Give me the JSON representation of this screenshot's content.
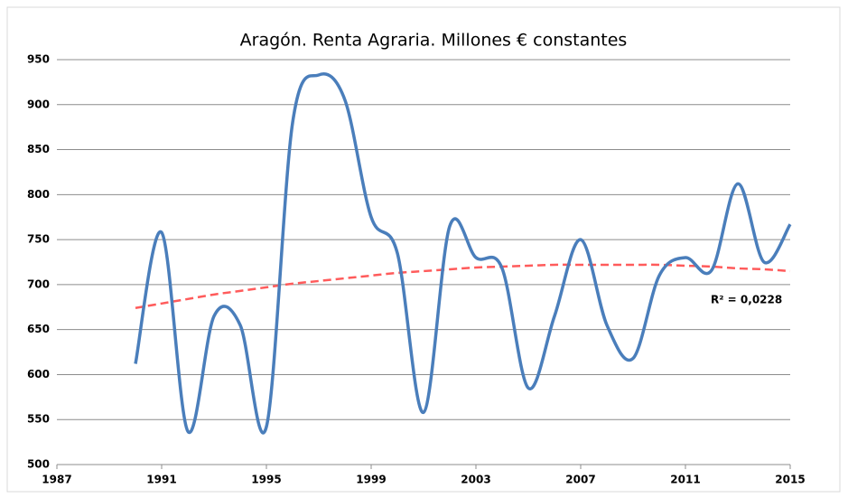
{
  "chart_data": {
    "type": "line",
    "title": "Aragón. Renta Agraria. Millones € constantes",
    "x": [
      1990,
      1991,
      1992,
      1993,
      1994,
      1995,
      1996,
      1997,
      1998,
      1999,
      2000,
      2001,
      2002,
      2003,
      2004,
      2005,
      2006,
      2007,
      2008,
      2009,
      2010,
      2011,
      2012,
      2013,
      2014,
      2015
    ],
    "series": [
      {
        "color": "#4a7ebb",
        "values": [
          612,
          758,
          537,
          665,
          655,
          542,
          880,
          933,
          905,
          775,
          735,
          558,
          765,
          730,
          718,
          585,
          665,
          750,
          655,
          618,
          710,
          730,
          716,
          812,
          725,
          767
        ]
      }
    ],
    "trendline": {
      "color": "#ff5b5b",
      "label": "R² = 0,0228",
      "values": [
        674,
        679,
        684,
        689,
        693,
        697,
        701,
        704,
        707,
        710,
        713,
        715,
        717,
        719,
        720,
        721,
        722,
        722,
        722,
        722,
        722,
        721,
        720,
        718,
        717,
        715
      ]
    },
    "xlim": [
      1987,
      2015
    ],
    "xticks": [
      1987,
      1991,
      1995,
      1999,
      2003,
      2007,
      2011,
      2015
    ],
    "ylim": [
      500,
      950
    ],
    "yticks": [
      500,
      550,
      600,
      650,
      700,
      750,
      800,
      850,
      900,
      950
    ],
    "grid": true
  }
}
